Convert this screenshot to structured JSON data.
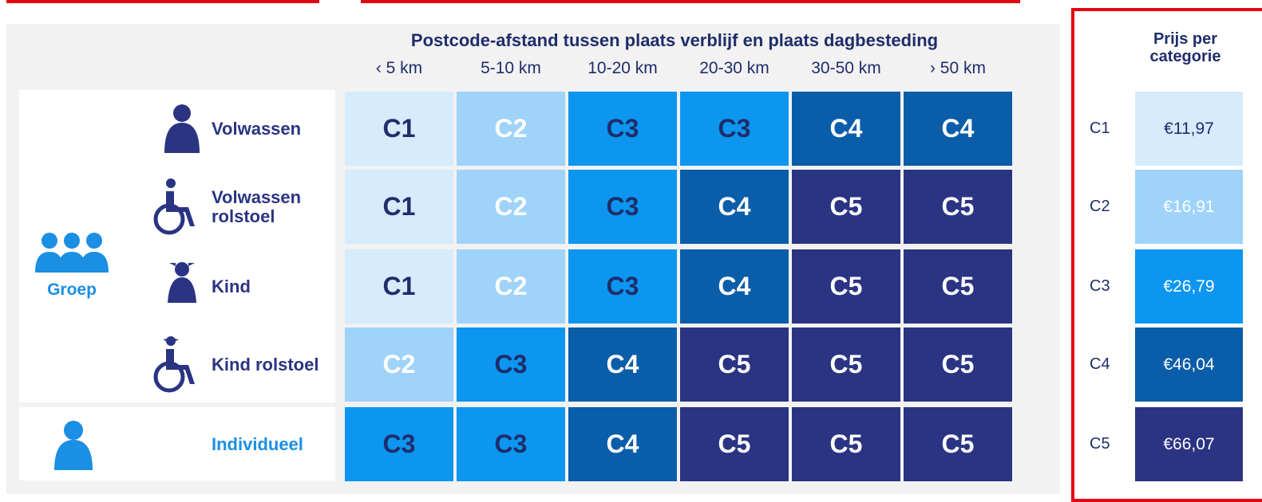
{
  "header": {
    "title": "Postcode-afstand tussen plaats verblijf en plaats dagbesteding",
    "columns": [
      "‹ 5 km",
      "5-10 km",
      "10-20 km",
      "20-30 km",
      "30-50 km",
      "› 50 km"
    ]
  },
  "group": {
    "label": "Groep",
    "rows": [
      {
        "label": "Volwassen",
        "cells": [
          "C1",
          "C2",
          "C3",
          "C3",
          "C4",
          "C4"
        ]
      },
      {
        "label": "Volwassen rolstoel",
        "cells": [
          "C1",
          "C2",
          "C3",
          "C4",
          "C5",
          "C5"
        ]
      },
      {
        "label": "Kind",
        "cells": [
          "C1",
          "C2",
          "C3",
          "C4",
          "C5",
          "C5"
        ]
      },
      {
        "label": "Kind rolstoel",
        "cells": [
          "C2",
          "C3",
          "C4",
          "C5",
          "C5",
          "C5"
        ]
      }
    ]
  },
  "individual": {
    "label": "Individueel",
    "cells": [
      "C3",
      "C3",
      "C4",
      "C5",
      "C5",
      "C5"
    ]
  },
  "prices": {
    "title": "Prijs per categorie",
    "items": [
      {
        "category": "C1",
        "price": "€11,97"
      },
      {
        "category": "C2",
        "price": "€16,91"
      },
      {
        "category": "C3",
        "price": "€26,79"
      },
      {
        "category": "C4",
        "price": "€46,04"
      },
      {
        "category": "C5",
        "price": "€66,07"
      }
    ]
  }
}
